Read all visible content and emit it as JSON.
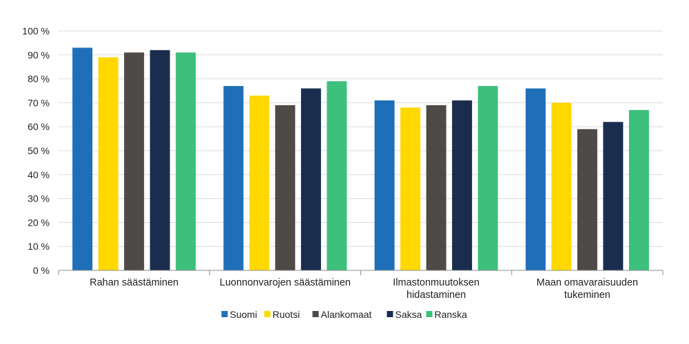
{
  "chart_data": {
    "type": "bar",
    "title": "",
    "xlabel": "",
    "ylabel": "",
    "ylim": [
      0,
      100
    ],
    "y_ticks": [
      {
        "value": 0,
        "label": "0 %"
      },
      {
        "value": 10,
        "label": "10 %"
      },
      {
        "value": 20,
        "label": "20 %"
      },
      {
        "value": 30,
        "label": "30 %"
      },
      {
        "value": 40,
        "label": "40 %"
      },
      {
        "value": 50,
        "label": "50 %"
      },
      {
        "value": 60,
        "label": "60 %"
      },
      {
        "value": 70,
        "label": "70 %"
      },
      {
        "value": 80,
        "label": "80 %"
      },
      {
        "value": 90,
        "label": "90 %"
      },
      {
        "value": 100,
        "label": "100 %"
      }
    ],
    "grid": true,
    "legend_position": "bottom",
    "categories": [
      [
        "Rahan säästäminen"
      ],
      [
        "Luonnonvarojen säästäminen"
      ],
      [
        "Ilmastonmuutoksen",
        "hidastaminen"
      ],
      [
        "Maan omavaraisuuden",
        "tukeminen"
      ]
    ],
    "series": [
      {
        "name": "Suomi",
        "color": "#1f6fb8",
        "values": [
          93,
          77,
          71,
          76
        ]
      },
      {
        "name": "Ruotsi",
        "color": "#ffd800",
        "values": [
          89,
          73,
          68,
          70
        ]
      },
      {
        "name": "Alankomaat",
        "color": "#4d4a47",
        "values": [
          91,
          69,
          69,
          59
        ]
      },
      {
        "name": "Saksa",
        "color": "#1b2d4f",
        "values": [
          92,
          76,
          71,
          62
        ]
      },
      {
        "name": "Ranska",
        "color": "#3cc07c",
        "values": [
          91,
          79,
          77,
          67
        ]
      }
    ]
  }
}
